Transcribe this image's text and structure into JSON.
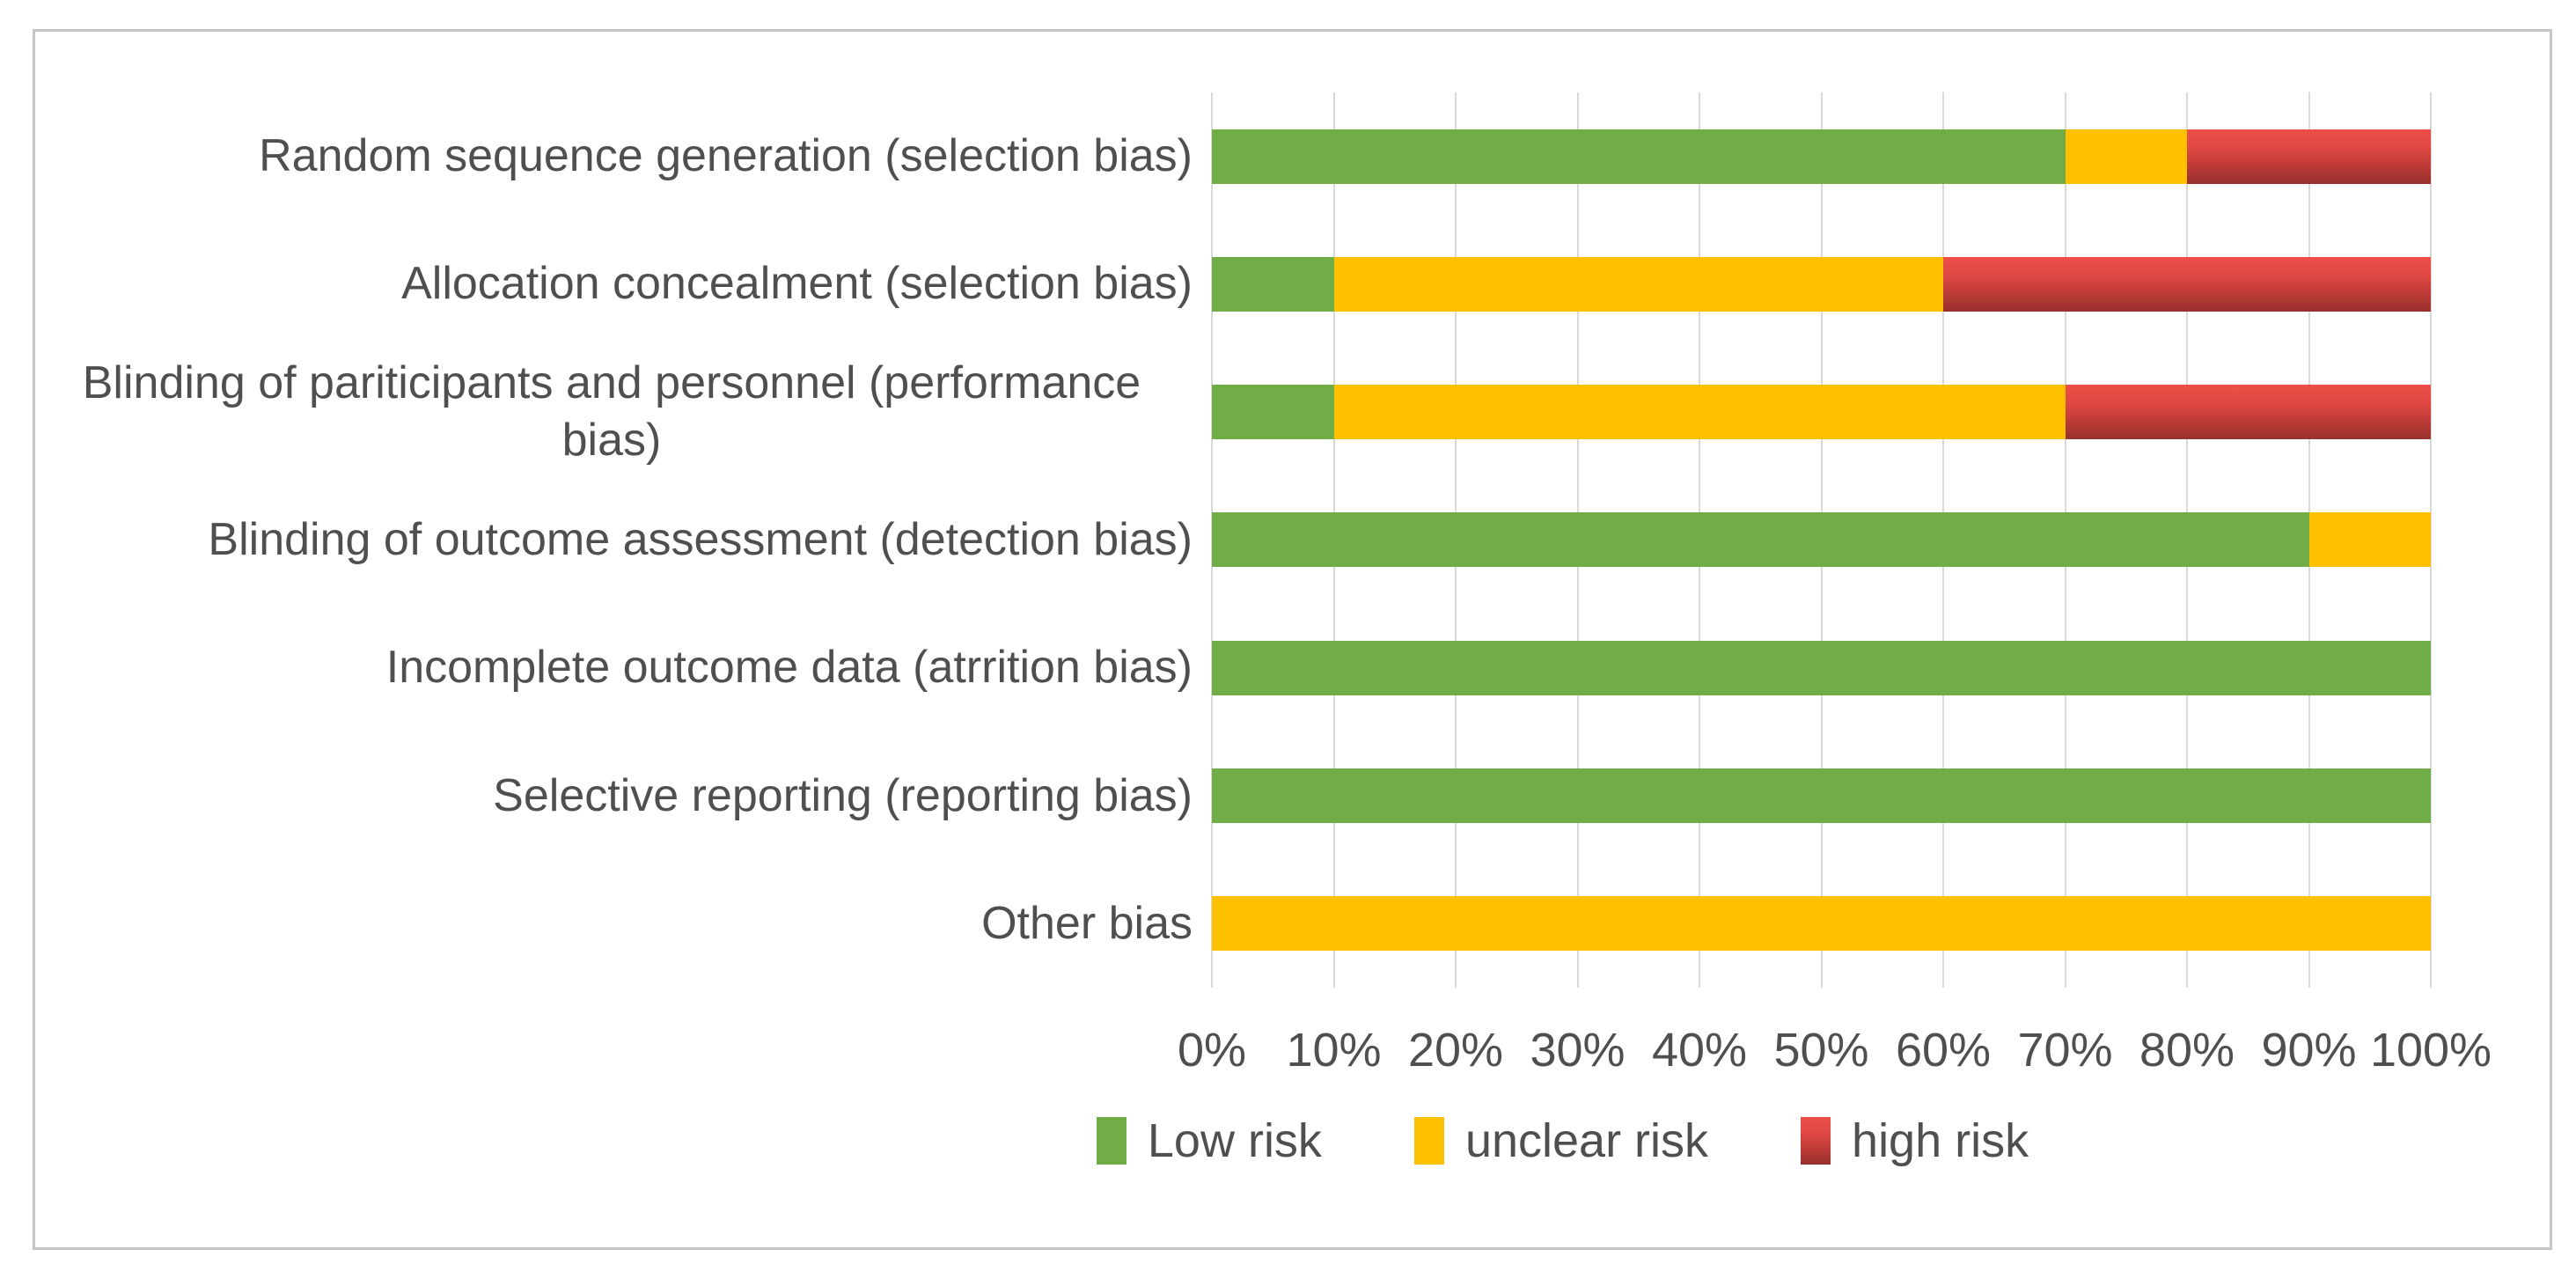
{
  "figure": {
    "background_color": "#ffffff",
    "frame_border_color": "#c6c6c6",
    "gridline_color": "#d9d9d9",
    "text_color": "#4f4f4f"
  },
  "chart_data": {
    "type": "bar",
    "orientation": "horizontal",
    "stacked": true,
    "unit": "percent",
    "title": "",
    "xlabel": "",
    "ylabel": "",
    "xlim": [
      0,
      100
    ],
    "grid": true,
    "categories": [
      "Random sequence generation (selection bias)",
      "Allocation concealment (selection bias)",
      "Blinding of pariticipants and personnel (performance bias)",
      "Blinding of outcome assessment (detection bias)",
      "Incomplete outcome data (atrrition bias)",
      "Selective reporting (reporting bias)",
      "Other bias"
    ],
    "series": [
      {
        "name": "Low risk",
        "color": "#70ad47",
        "values": [
          70,
          10,
          10,
          90,
          100,
          100,
          0
        ]
      },
      {
        "name": "unclear risk",
        "color": "#ffc000",
        "values": [
          10,
          50,
          60,
          10,
          0,
          0,
          100
        ]
      },
      {
        "name": "high risk",
        "color": "#d8423e",
        "gradient": [
          "#ee4e48",
          "#e04843",
          "#bd3b37",
          "#97302d"
        ],
        "values": [
          20,
          40,
          30,
          0,
          0,
          0,
          0
        ]
      }
    ],
    "x_axis": {
      "tick_labels": [
        "0%",
        "10%",
        "20%",
        "30%",
        "40%",
        "50%",
        "60%",
        "70%",
        "80%",
        "90%",
        "100%"
      ],
      "tick_step": 10
    },
    "legend": {
      "position": "bottom",
      "items": [
        "Low risk",
        "unclear risk",
        "high risk"
      ]
    }
  }
}
